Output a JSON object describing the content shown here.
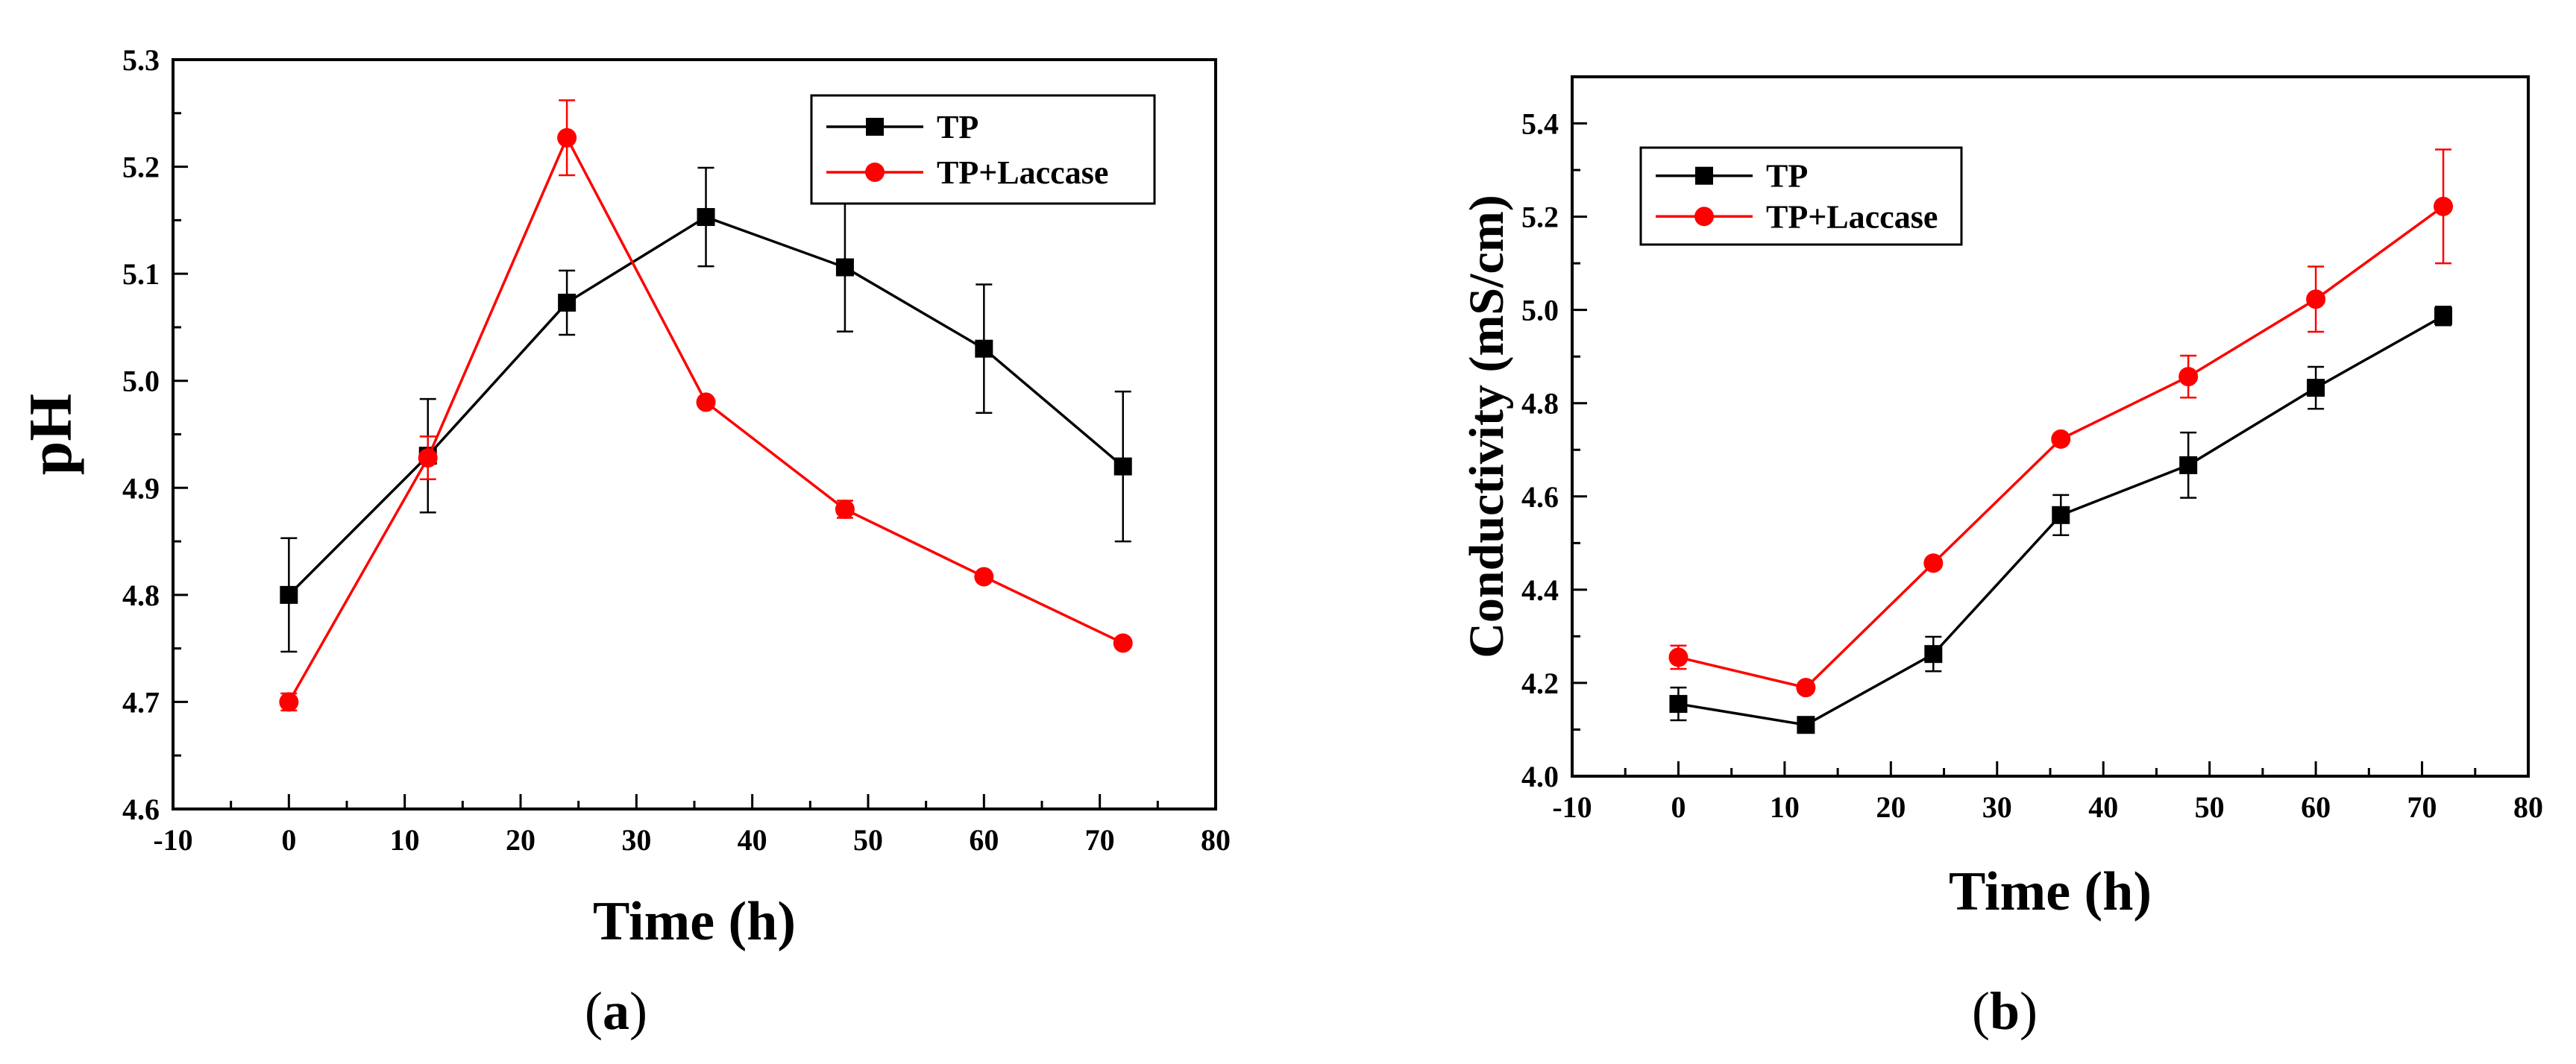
{
  "chart_data": [
    {
      "type": "line",
      "panel_label": "a",
      "title": "",
      "xlabel": "Time (h)",
      "ylabel": "pH",
      "xlim": [
        -10,
        80
      ],
      "ylim": [
        4.6,
        5.3
      ],
      "xticks": [
        -10,
        0,
        10,
        20,
        30,
        40,
        50,
        60,
        70,
        80
      ],
      "yticks": [
        "4.6",
        "4.7",
        "4.8",
        "4.9",
        "5.0",
        "5.1",
        "5.2",
        "5.3"
      ],
      "grid": false,
      "legend": "top-right",
      "x": [
        0,
        12,
        24,
        36,
        48,
        60,
        72
      ],
      "series": [
        {
          "name": "TP",
          "marker": "square",
          "color": "#000000",
          "values": [
            4.8,
            4.93,
            5.073,
            5.153,
            5.106,
            5.03,
            4.92
          ],
          "errors": [
            0.053,
            0.053,
            0.03,
            0.046,
            0.06,
            0.06,
            0.07
          ]
        },
        {
          "name": "TP+Laccase",
          "marker": "circle",
          "color": "#ff0000",
          "values": [
            4.7,
            4.928,
            5.227,
            4.98,
            4.88,
            4.817,
            4.755
          ],
          "errors": [
            0.008,
            0.02,
            0.035,
            0.003,
            0.008,
            0.004,
            0.003
          ]
        }
      ]
    },
    {
      "type": "line",
      "panel_label": "b",
      "title": "",
      "xlabel": "Time (h)",
      "ylabel": "Conductivity (mS/cm)",
      "xlim": [
        -10,
        80
      ],
      "ylim": [
        4.0,
        5.5
      ],
      "xticks": [
        -10,
        0,
        10,
        20,
        30,
        40,
        50,
        60,
        70,
        80
      ],
      "yticks": [
        "4.0",
        "4.2",
        "4.4",
        "4.6",
        "4.8",
        "5.0",
        "5.2",
        "5.4"
      ],
      "grid": false,
      "legend": "top-left",
      "x": [
        0,
        12,
        24,
        36,
        48,
        60,
        72
      ],
      "series": [
        {
          "name": "TP",
          "marker": "square",
          "color": "#000000",
          "values": [
            4.155,
            4.11,
            4.262,
            4.56,
            4.667,
            4.833,
            4.987
          ],
          "errors": [
            0.035,
            0.012,
            0.037,
            0.043,
            0.07,
            0.045,
            0.02
          ]
        },
        {
          "name": "TP+Laccase",
          "marker": "circle",
          "color": "#ff0000",
          "values": [
            4.255,
            4.19,
            4.457,
            4.723,
            4.857,
            5.023,
            5.222
          ],
          "errors": [
            0.025,
            0.01,
            0.005,
            0.008,
            0.045,
            0.07,
            0.122
          ]
        }
      ]
    }
  ]
}
